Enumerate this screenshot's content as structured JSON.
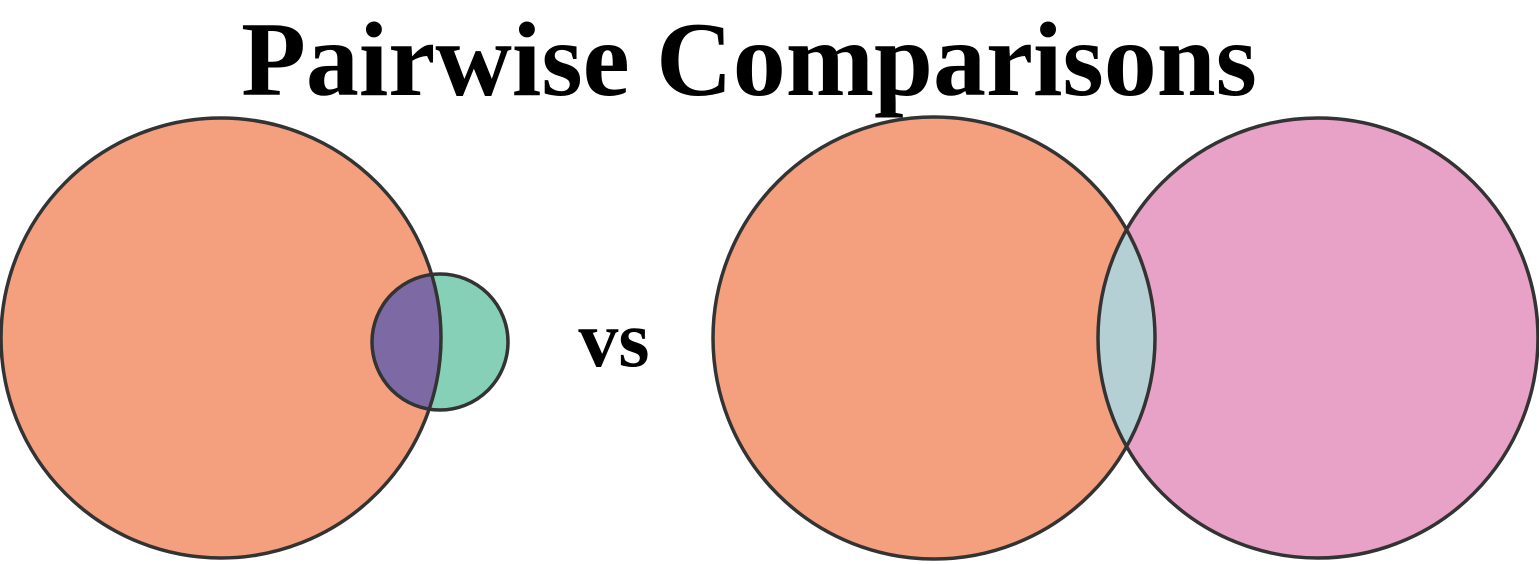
{
  "title": "Pairwise Comparisons",
  "separator_label": "vs",
  "colors": {
    "set_a": "#f4a07e",
    "set_b_small": "#87d0b8",
    "overlap_small": "#7d69a3",
    "set_b_large": "#e8a1c7",
    "overlap_large": "#b5d0d5",
    "outline": "#333333"
  }
}
